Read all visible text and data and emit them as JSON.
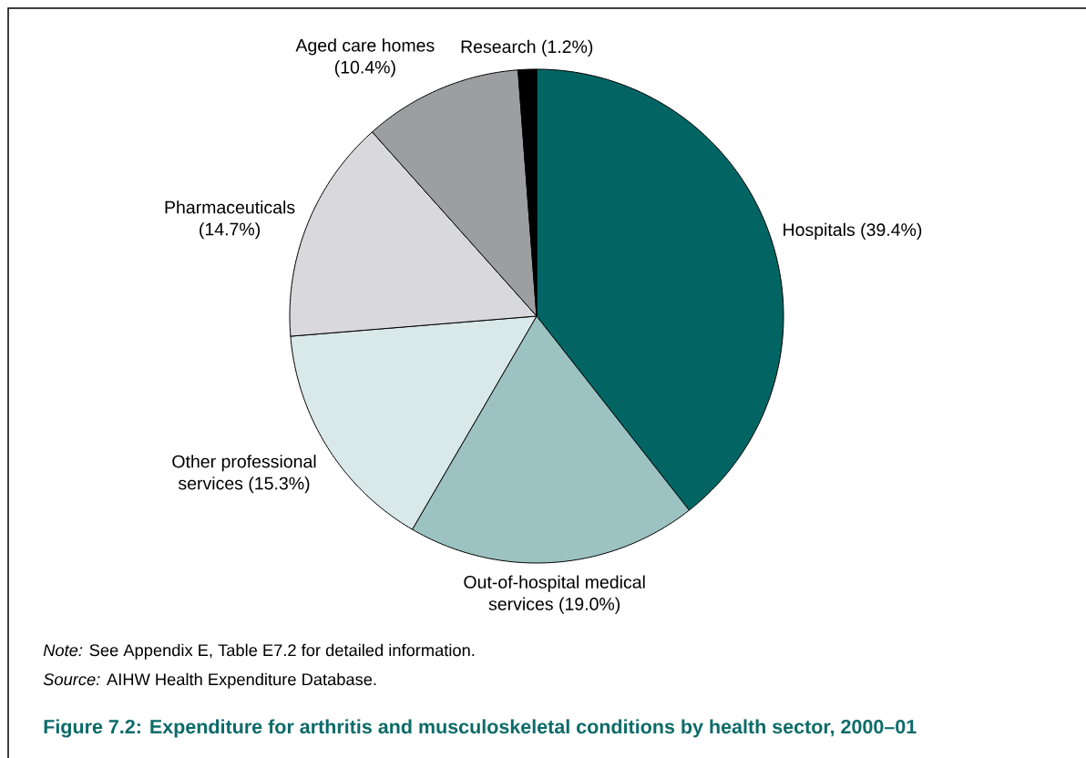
{
  "chart_data": {
    "type": "pie",
    "title": "Figure 7.2: Expenditure for arthritis and musculoskeletal conditions by health sector, 2000–01",
    "categories": [
      "Hospitals (39.4%)",
      "Out-of-hospital medical services (19.0%)",
      "Other professional services (15.3%)",
      "Pharmaceuticals (14.7%)",
      "Aged care homes (10.4%)",
      "Research (1.2%)"
    ],
    "values": [
      39.4,
      19.0,
      15.3,
      14.7,
      10.4,
      1.2
    ],
    "colors": [
      "#026563",
      "#9cc2c2",
      "#d9e8e8",
      "#d9d9db",
      "#9d9ea0",
      "#000000"
    ],
    "annotations": [
      "*Note:* See Appendix E, Table E7.2 for detailed information.",
      "*Source:* AIHW Health Expenditure Database."
    ]
  }
}
